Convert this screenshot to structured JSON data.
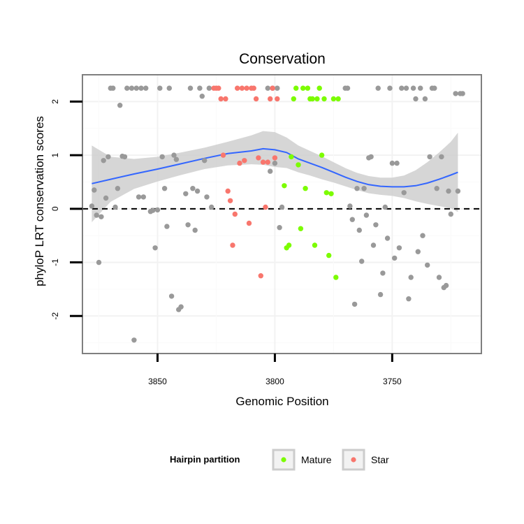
{
  "chart_data": {
    "type": "scatter",
    "title": "Conservation",
    "xlabel": "Genomic Position",
    "ylabel": "phyloP LRT conservation scores",
    "x_reversed": true,
    "xlim": [
      3882,
      3712
    ],
    "ylim": [
      -2.7,
      2.5
    ],
    "xticks": [
      3850,
      3800,
      3750
    ],
    "yticks": [
      -2,
      -1,
      0,
      1,
      2
    ],
    "grid": true,
    "legend": {
      "title": "Hairpin partition",
      "position": "bottom"
    },
    "colors": {
      "none": "#999999",
      "Mature": "#7cfc00",
      "Star": "#f8766d",
      "smooth": "#3366ff",
      "ribbon": "#cccccc",
      "panel_border": "#7f7f7f"
    },
    "reference_line": {
      "y": 0,
      "style": "dashed"
    },
    "series": [
      {
        "partition": "none",
        "points": [
          [
            3878,
            0.05
          ],
          [
            3877,
            0.35
          ],
          [
            3876,
            -0.12
          ],
          [
            3875,
            -1.0
          ],
          [
            3874,
            -0.15
          ],
          [
            3873,
            0.9
          ],
          [
            3872,
            0.2
          ],
          [
            3871,
            0.97
          ],
          [
            3870,
            2.25
          ],
          [
            3869,
            2.25
          ],
          [
            3868,
            0.03
          ],
          [
            3867,
            0.38
          ],
          [
            3866,
            1.93
          ],
          [
            3865,
            0.98
          ],
          [
            3864,
            0.97
          ],
          [
            3863,
            2.25
          ],
          [
            3861,
            2.25
          ],
          [
            3860,
            -2.45
          ],
          [
            3859,
            2.25
          ],
          [
            3858,
            0.22
          ],
          [
            3857,
            2.25
          ],
          [
            3856,
            0.22
          ],
          [
            3855,
            2.25
          ],
          [
            3853,
            -0.05
          ],
          [
            3852,
            -0.03
          ],
          [
            3851,
            -0.73
          ],
          [
            3850,
            -0.02
          ],
          [
            3849,
            2.25
          ],
          [
            3848,
            0.97
          ],
          [
            3847,
            0.38
          ],
          [
            3846,
            -0.33
          ],
          [
            3845,
            2.25
          ],
          [
            3844,
            -1.63
          ],
          [
            3843,
            1.0
          ],
          [
            3842,
            0.92
          ],
          [
            3841,
            -1.88
          ],
          [
            3840,
            -1.83
          ],
          [
            3838,
            0.28
          ],
          [
            3837,
            -0.3
          ],
          [
            3836,
            2.25
          ],
          [
            3835,
            0.38
          ],
          [
            3834,
            -0.4
          ],
          [
            3833,
            0.33
          ],
          [
            3832,
            2.25
          ],
          [
            3831,
            2.1
          ],
          [
            3830,
            0.9
          ],
          [
            3829,
            0.22
          ],
          [
            3828,
            2.25
          ],
          [
            3827,
            0.03
          ],
          [
            3803,
            2.25
          ],
          [
            3802,
            0.7
          ],
          [
            3801,
            2.25
          ],
          [
            3800,
            0.85
          ],
          [
            3799,
            2.25
          ],
          [
            3798,
            -0.35
          ],
          [
            3797,
            0.03
          ],
          [
            3770,
            2.25
          ],
          [
            3769,
            2.25
          ],
          [
            3768,
            0.05
          ],
          [
            3767,
            -0.2
          ],
          [
            3766,
            -1.78
          ],
          [
            3765,
            0.38
          ],
          [
            3764,
            -0.4
          ],
          [
            3763,
            -0.98
          ],
          [
            3762,
            0.38
          ],
          [
            3761,
            -0.12
          ],
          [
            3760,
            0.95
          ],
          [
            3759,
            0.97
          ],
          [
            3758,
            -0.68
          ],
          [
            3757,
            -0.3
          ],
          [
            3756,
            2.25
          ],
          [
            3755,
            -1.6
          ],
          [
            3754,
            -1.2
          ],
          [
            3753,
            0.03
          ],
          [
            3752,
            -0.55
          ],
          [
            3751,
            2.25
          ],
          [
            3750,
            0.85
          ],
          [
            3749,
            -0.92
          ],
          [
            3748,
            0.85
          ],
          [
            3747,
            -0.73
          ],
          [
            3746,
            2.25
          ],
          [
            3745,
            0.3
          ],
          [
            3744,
            2.25
          ],
          [
            3743,
            -1.68
          ],
          [
            3742,
            -1.28
          ],
          [
            3741,
            2.25
          ],
          [
            3740,
            2.05
          ],
          [
            3739,
            -0.8
          ],
          [
            3738,
            2.25
          ],
          [
            3737,
            -0.5
          ],
          [
            3736,
            2.05
          ],
          [
            3735,
            -1.05
          ],
          [
            3734,
            0.97
          ],
          [
            3733,
            2.25
          ],
          [
            3732,
            2.25
          ],
          [
            3731,
            0.38
          ],
          [
            3730,
            -1.28
          ],
          [
            3729,
            0.97
          ],
          [
            3728,
            -1.47
          ],
          [
            3727,
            -1.43
          ],
          [
            3726,
            0.33
          ],
          [
            3725,
            -0.1
          ],
          [
            3723,
            2.15
          ],
          [
            3722,
            0.33
          ],
          [
            3721,
            2.15
          ],
          [
            3720,
            2.15
          ]
        ]
      },
      {
        "partition": "Mature",
        "name": "Mature",
        "points": [
          [
            3796,
            0.43
          ],
          [
            3795,
            -0.73
          ],
          [
            3794,
            -0.68
          ],
          [
            3793,
            0.97
          ],
          [
            3792,
            2.05
          ],
          [
            3791,
            2.25
          ],
          [
            3790,
            0.82
          ],
          [
            3789,
            -0.37
          ],
          [
            3788,
            2.25
          ],
          [
            3787,
            0.38
          ],
          [
            3786,
            2.25
          ],
          [
            3785,
            2.05
          ],
          [
            3784,
            2.05
          ],
          [
            3783,
            -0.68
          ],
          [
            3782,
            2.05
          ],
          [
            3781,
            2.25
          ],
          [
            3780,
            1.0
          ],
          [
            3779,
            2.05
          ],
          [
            3778,
            0.3
          ],
          [
            3777,
            -0.87
          ],
          [
            3776,
            0.28
          ],
          [
            3775,
            2.05
          ],
          [
            3774,
            -1.28
          ],
          [
            3773,
            2.05
          ]
        ]
      },
      {
        "partition": "Star",
        "name": "Star",
        "points": [
          [
            3826,
            2.25
          ],
          [
            3825,
            2.25
          ],
          [
            3824,
            2.25
          ],
          [
            3823,
            2.05
          ],
          [
            3822,
            1.0
          ],
          [
            3821,
            2.05
          ],
          [
            3820,
            0.33
          ],
          [
            3819,
            0.15
          ],
          [
            3818,
            -0.68
          ],
          [
            3817,
            -0.1
          ],
          [
            3816,
            2.25
          ],
          [
            3815,
            0.85
          ],
          [
            3814,
            2.25
          ],
          [
            3813,
            0.9
          ],
          [
            3812,
            2.25
          ],
          [
            3811,
            -0.27
          ],
          [
            3810,
            2.25
          ],
          [
            3809,
            2.25
          ],
          [
            3808,
            2.05
          ],
          [
            3807,
            0.95
          ],
          [
            3806,
            -1.25
          ],
          [
            3805,
            0.87
          ],
          [
            3804,
            0.03
          ],
          [
            3803,
            0.87
          ],
          [
            3802,
            2.05
          ],
          [
            3801,
            2.25
          ],
          [
            3800,
            0.95
          ],
          [
            3799,
            2.05
          ]
        ]
      }
    ],
    "smooth_line": [
      [
        3878,
        0.47
      ],
      [
        3870,
        0.55
      ],
      [
        3860,
        0.65
      ],
      [
        3850,
        0.74
      ],
      [
        3840,
        0.84
      ],
      [
        3830,
        0.94
      ],
      [
        3820,
        1.03
      ],
      [
        3810,
        1.08
      ],
      [
        3805,
        1.12
      ],
      [
        3800,
        1.1
      ],
      [
        3795,
        1.05
      ],
      [
        3790,
        0.93
      ],
      [
        3785,
        0.85
      ],
      [
        3780,
        0.77
      ],
      [
        3775,
        0.68
      ],
      [
        3770,
        0.59
      ],
      [
        3765,
        0.51
      ],
      [
        3760,
        0.45
      ],
      [
        3755,
        0.42
      ],
      [
        3750,
        0.41
      ],
      [
        3745,
        0.41
      ],
      [
        3740,
        0.43
      ],
      [
        3735,
        0.48
      ],
      [
        3730,
        0.55
      ],
      [
        3725,
        0.63
      ],
      [
        3722,
        0.68
      ]
    ],
    "ribbon": {
      "upper": [
        [
          3878,
          1.18
        ],
        [
          3870,
          0.97
        ],
        [
          3860,
          0.93
        ],
        [
          3850,
          0.97
        ],
        [
          3840,
          1.05
        ],
        [
          3830,
          1.14
        ],
        [
          3820,
          1.25
        ],
        [
          3810,
          1.37
        ],
        [
          3805,
          1.45
        ],
        [
          3800,
          1.43
        ],
        [
          3795,
          1.33
        ],
        [
          3790,
          1.18
        ],
        [
          3785,
          1.08
        ],
        [
          3780,
          0.98
        ],
        [
          3775,
          0.87
        ],
        [
          3770,
          0.76
        ],
        [
          3765,
          0.67
        ],
        [
          3760,
          0.61
        ],
        [
          3755,
          0.58
        ],
        [
          3750,
          0.58
        ],
        [
          3745,
          0.62
        ],
        [
          3740,
          0.72
        ],
        [
          3735,
          0.87
        ],
        [
          3730,
          1.05
        ],
        [
          3725,
          1.25
        ],
        [
          3722,
          1.42
        ]
      ],
      "lower": [
        [
          3878,
          -0.25
        ],
        [
          3870,
          0.13
        ],
        [
          3860,
          0.37
        ],
        [
          3850,
          0.51
        ],
        [
          3840,
          0.63
        ],
        [
          3830,
          0.74
        ],
        [
          3820,
          0.81
        ],
        [
          3810,
          0.83
        ],
        [
          3805,
          0.82
        ],
        [
          3800,
          0.78
        ],
        [
          3795,
          0.76
        ],
        [
          3790,
          0.68
        ],
        [
          3785,
          0.62
        ],
        [
          3780,
          0.55
        ],
        [
          3775,
          0.49
        ],
        [
          3770,
          0.42
        ],
        [
          3765,
          0.35
        ],
        [
          3760,
          0.29
        ],
        [
          3755,
          0.26
        ],
        [
          3750,
          0.24
        ],
        [
          3745,
          0.2
        ],
        [
          3740,
          0.14
        ],
        [
          3735,
          0.09
        ],
        [
          3730,
          0.05
        ],
        [
          3725,
          0.01
        ],
        [
          3722,
          -0.06
        ]
      ]
    }
  }
}
